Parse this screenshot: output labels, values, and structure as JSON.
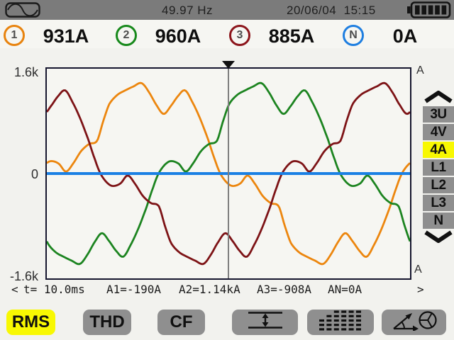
{
  "topbar": {
    "frequency": "49.97 Hz",
    "datetime": "20/06/04  15:15",
    "battery_bars": 5
  },
  "channels": [
    {
      "id": "1",
      "value": "931A",
      "color": "#e8830e"
    },
    {
      "id": "2",
      "value": "960A",
      "color": "#17891b"
    },
    {
      "id": "3",
      "value": "885A",
      "color": "#8c151b"
    },
    {
      "id": "N",
      "value": "0A",
      "color": "#1e7ee0"
    }
  ],
  "chart": {
    "y_tick_top": "1.6k",
    "y_tick_mid": "0",
    "y_tick_bottom": "-1.6k",
    "unit_top": "A",
    "unit_bottom": "A"
  },
  "chart_data": {
    "type": "line",
    "x": {
      "label": "t",
      "unit": "ms",
      "range": [
        0,
        20
      ],
      "cursor_ms": 10.0
    },
    "y": {
      "unit": "A",
      "ticks": [
        "1.6k",
        "0",
        "-1.6k"
      ],
      "range_kA": [
        -1.6,
        1.6
      ]
    },
    "grid": false,
    "legend": false,
    "cursor_color": "#7e7e7e",
    "series": [
      {
        "name": "A1",
        "color": "#ec860e",
        "rms_display": "931A",
        "cursor_display": "-190A",
        "zero_cross_ms": -0.45,
        "period_ms": 20
      },
      {
        "name": "A2",
        "color": "#1c8420",
        "rms_display": "960A",
        "cursor_display": "1.14kA",
        "zero_cross_ms": 6.15,
        "period_ms": 20
      },
      {
        "name": "A3",
        "color": "#7d1316",
        "rms_display": "885A",
        "cursor_display": "-908A",
        "zero_cross_ms": 12.95,
        "period_ms": 20
      },
      {
        "name": "AN",
        "color": "#1a80e4",
        "rms_display": "0A",
        "cursor_display": "0A",
        "flat_kA": 0
      }
    ],
    "waveshape_half_cycle_deg_kA": [
      [
        0,
        0
      ],
      [
        6,
        0.13
      ],
      [
        12,
        0.19
      ],
      [
        20,
        0.15
      ],
      [
        27,
        0.03
      ],
      [
        34,
        0.15
      ],
      [
        42,
        0.34
      ],
      [
        50,
        0.45
      ],
      [
        58,
        0.5
      ],
      [
        64,
        0.8
      ],
      [
        70,
        1.06
      ],
      [
        78,
        1.2
      ],
      [
        86,
        1.27
      ],
      [
        94,
        1.33
      ],
      [
        102,
        1.38
      ],
      [
        109,
        1.25
      ],
      [
        117,
        1.04
      ],
      [
        124,
        0.91
      ],
      [
        131,
        1.03
      ],
      [
        138,
        1.18
      ],
      [
        145,
        1.27
      ],
      [
        152,
        1.1
      ],
      [
        160,
        0.84
      ],
      [
        168,
        0.52
      ],
      [
        175,
        0.2
      ],
      [
        180,
        0
      ]
    ]
  },
  "sidebar": {
    "item_bg": "#8f8f8f",
    "active_bg": "#f8f802",
    "items": [
      {
        "label": "3U",
        "active": false
      },
      {
        "label": "4V",
        "active": false
      },
      {
        "label": "4A",
        "active": true
      },
      {
        "label": "L1",
        "active": false
      },
      {
        "label": "L2",
        "active": false
      },
      {
        "label": "L3",
        "active": false
      },
      {
        "label": "N",
        "active": false
      }
    ]
  },
  "status_line": {
    "prev": "<",
    "time": "t= 10.0ms",
    "a1": "A1=-190A",
    "a2": "A2=1.14kA",
    "a3": "A3=-908A",
    "an": "AN=0A",
    "next": ">"
  },
  "toolbar": {
    "button_bg": "#8f8f8f",
    "active_bg": "#f8f802",
    "buttons": [
      {
        "label": "RMS",
        "active": true
      },
      {
        "label": "THD",
        "active": false
      },
      {
        "label": "CF",
        "active": false
      },
      {
        "icon": "minmax-icon",
        "active": false
      },
      {
        "icon": "harmonics-icon",
        "active": false
      },
      {
        "icon": "phasor-icon",
        "active": false
      }
    ]
  }
}
